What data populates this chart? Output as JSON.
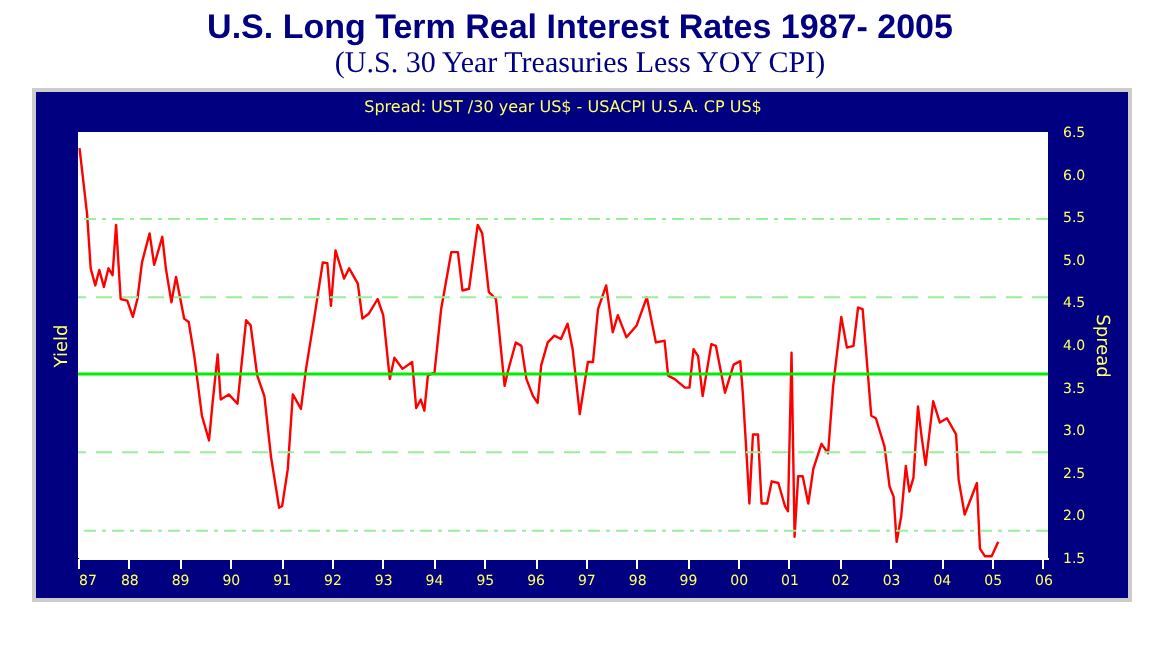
{
  "chart_data": {
    "type": "line",
    "title": "U.S. Long Term Real Interest Rates 1987- 2005",
    "subtitle": "(U.S. 30 Year Treasuries Less YOY CPI)",
    "annotations": [
      "Spread: UST /30 year US$  -  USACPI U.S.A. CP US$"
    ],
    "ylabel": "Yield",
    "y2label": "Spread",
    "x": [
      1987.03,
      1987.18,
      1987.25,
      1987.34,
      1987.42,
      1987.51,
      1987.6,
      1987.68,
      1987.75,
      1987.84,
      1987.97,
      1988.08,
      1988.17,
      1988.26,
      1988.41,
      1988.5,
      1988.66,
      1988.73,
      1988.84,
      1988.93,
      1989.09,
      1989.18,
      1989.29,
      1989.44,
      1989.58,
      1989.65,
      1989.75,
      1989.81,
      1989.97,
      1990.14,
      1990.31,
      1990.4,
      1990.53,
      1990.67,
      1990.8,
      1990.96,
      1991.02,
      1991.13,
      1991.23,
      1991.39,
      1991.49,
      1991.65,
      1991.82,
      1991.91,
      1991.98,
      1992.07,
      1992.24,
      1992.34,
      1992.51,
      1992.6,
      1992.73,
      1992.9,
      1993.01,
      1993.14,
      1993.23,
      1993.39,
      1993.58,
      1993.66,
      1993.75,
      1993.82,
      1993.89,
      1994.02,
      1994.15,
      1994.35,
      1994.48,
      1994.57,
      1994.7,
      1994.87,
      1994.96,
      1995.09,
      1995.23,
      1995.4,
      1995.46,
      1995.62,
      1995.73,
      1995.83,
      1995.96,
      1996.05,
      1996.12,
      1996.25,
      1996.38,
      1996.51,
      1996.64,
      1996.74,
      1996.88,
      1997.04,
      1997.14,
      1997.24,
      1997.4,
      1997.53,
      1997.63,
      1997.8,
      1998.0,
      1998.2,
      1998.38,
      1998.55,
      1998.62,
      1998.75,
      1998.95,
      1999.04,
      1999.12,
      1999.21,
      1999.3,
      1999.47,
      1999.56,
      1999.74,
      1999.91,
      2000.04,
      2000.09,
      2000.17,
      2000.22,
      2000.29,
      2000.39,
      2000.46,
      2000.57,
      2000.66,
      2000.79,
      2000.92,
      2000.98,
      2001.05,
      2001.11,
      2001.18,
      2001.27,
      2001.38,
      2001.48,
      2001.64,
      2001.77,
      2001.87,
      2002.03,
      2002.14,
      2002.27,
      2002.36,
      2002.45,
      2002.62,
      2002.71,
      2002.88,
      2002.98,
      2003.06,
      2003.12,
      2003.21,
      2003.3,
      2003.37,
      2003.45,
      2003.54,
      2003.61,
      2003.69,
      2003.84,
      2003.97,
      2004.11,
      2004.29,
      2004.34,
      2004.46,
      2004.59,
      2004.7,
      2004.76,
      2004.86,
      2004.99,
      2005.12
    ],
    "series": [
      {
        "color": "#ff0000",
        "axis": "y2",
        "values": [
          6.31,
          5.53,
          4.9,
          4.7,
          4.88,
          4.68,
          4.9,
          4.82,
          5.41,
          4.54,
          4.52,
          4.33,
          4.54,
          4.97,
          5.31,
          4.94,
          5.27,
          4.9,
          4.5,
          4.8,
          4.31,
          4.27,
          3.87,
          3.17,
          2.88,
          3.32,
          3.89,
          3.36,
          3.42,
          3.31,
          4.29,
          4.23,
          3.64,
          3.4,
          2.69,
          2.09,
          2.11,
          2.54,
          3.42,
          3.25,
          3.72,
          4.31,
          4.97,
          4.96,
          4.46,
          5.11,
          4.78,
          4.9,
          4.72,
          4.31,
          4.37,
          4.54,
          4.35,
          3.6,
          3.85,
          3.72,
          3.8,
          3.26,
          3.36,
          3.23,
          3.64,
          3.68,
          4.42,
          5.09,
          5.09,
          4.64,
          4.66,
          5.41,
          5.31,
          4.62,
          4.54,
          3.52,
          3.68,
          4.03,
          3.99,
          3.6,
          3.4,
          3.32,
          3.76,
          4.03,
          4.11,
          4.07,
          4.25,
          3.95,
          3.19,
          3.8,
          3.8,
          4.42,
          4.7,
          4.15,
          4.35,
          4.09,
          4.23,
          4.56,
          4.03,
          4.05,
          3.64,
          3.6,
          3.5,
          3.5,
          3.95,
          3.87,
          3.4,
          4.01,
          3.99,
          3.44,
          3.77,
          3.81,
          3.44,
          2.66,
          2.14,
          2.95,
          2.95,
          2.14,
          2.14,
          2.4,
          2.38,
          2.11,
          2.05,
          3.91,
          1.75,
          2.46,
          2.46,
          2.14,
          2.55,
          2.84,
          2.73,
          3.52,
          4.33,
          3.97,
          3.99,
          4.44,
          4.42,
          3.17,
          3.14,
          2.81,
          2.34,
          2.22,
          1.69,
          1.99,
          2.58,
          2.28,
          2.44,
          3.28,
          2.93,
          2.59,
          3.34,
          3.09,
          3.14,
          2.95,
          2.42,
          2.01,
          2.21,
          2.38,
          1.61,
          1.52,
          1.52,
          1.69
        ]
      }
    ],
    "xlim": [
      1987,
      2006.1
    ],
    "xticks": [
      {
        "value": 1987,
        "label": "87"
      },
      {
        "value": 1988,
        "label": "88"
      },
      {
        "value": 1989,
        "label": "89"
      },
      {
        "value": 1990,
        "label": "90"
      },
      {
        "value": 1991,
        "label": "91"
      },
      {
        "value": 1992,
        "label": "92"
      },
      {
        "value": 1993,
        "label": "93"
      },
      {
        "value": 1994,
        "label": "94"
      },
      {
        "value": 1995,
        "label": "95"
      },
      {
        "value": 1996,
        "label": "96"
      },
      {
        "value": 1997,
        "label": "97"
      },
      {
        "value": 1998,
        "label": "98"
      },
      {
        "value": 1999,
        "label": "99"
      },
      {
        "value": 2000,
        "label": "00"
      },
      {
        "value": 2001,
        "label": "01"
      },
      {
        "value": 2002,
        "label": "02"
      },
      {
        "value": 2003,
        "label": "03"
      },
      {
        "value": 2004,
        "label": "04"
      },
      {
        "value": 2005,
        "label": "05"
      },
      {
        "value": 2006,
        "label": "06"
      }
    ],
    "y2lim": [
      1.5,
      6.5
    ],
    "y2ticks": [
      {
        "value": 1.5,
        "label": "1.5"
      },
      {
        "value": 2,
        "label": "2.0"
      },
      {
        "value": 2.5,
        "label": "2.5"
      },
      {
        "value": 3,
        "label": "3.0"
      },
      {
        "value": 3.5,
        "label": "3.5"
      },
      {
        "value": 4,
        "label": "4.0"
      },
      {
        "value": 4.5,
        "label": "4.5"
      },
      {
        "value": 5,
        "label": "5.0"
      },
      {
        "value": 5.5,
        "label": "5.5"
      },
      {
        "value": 6,
        "label": "6.0"
      },
      {
        "value": 6.5,
        "label": "6.5"
      }
    ],
    "ref_lines": [
      {
        "axis": "y2",
        "value": 3.66,
        "color": "#00ee00",
        "line_style": "solid"
      },
      {
        "axis": "y2",
        "value": 5.48,
        "color": "#99ee99",
        "line_style": "dotted"
      },
      {
        "axis": "y2",
        "value": 4.56,
        "color": "#99ee99",
        "line_style": "dashed"
      },
      {
        "axis": "y2",
        "value": 2.74,
        "color": "#99ee99",
        "line_style": "dashed"
      },
      {
        "axis": "y2",
        "value": 1.82,
        "color": "#99ee99",
        "line_style": "dotted"
      }
    ],
    "grid": false,
    "legend": false,
    "marker": "none",
    "line_style": "solid"
  }
}
